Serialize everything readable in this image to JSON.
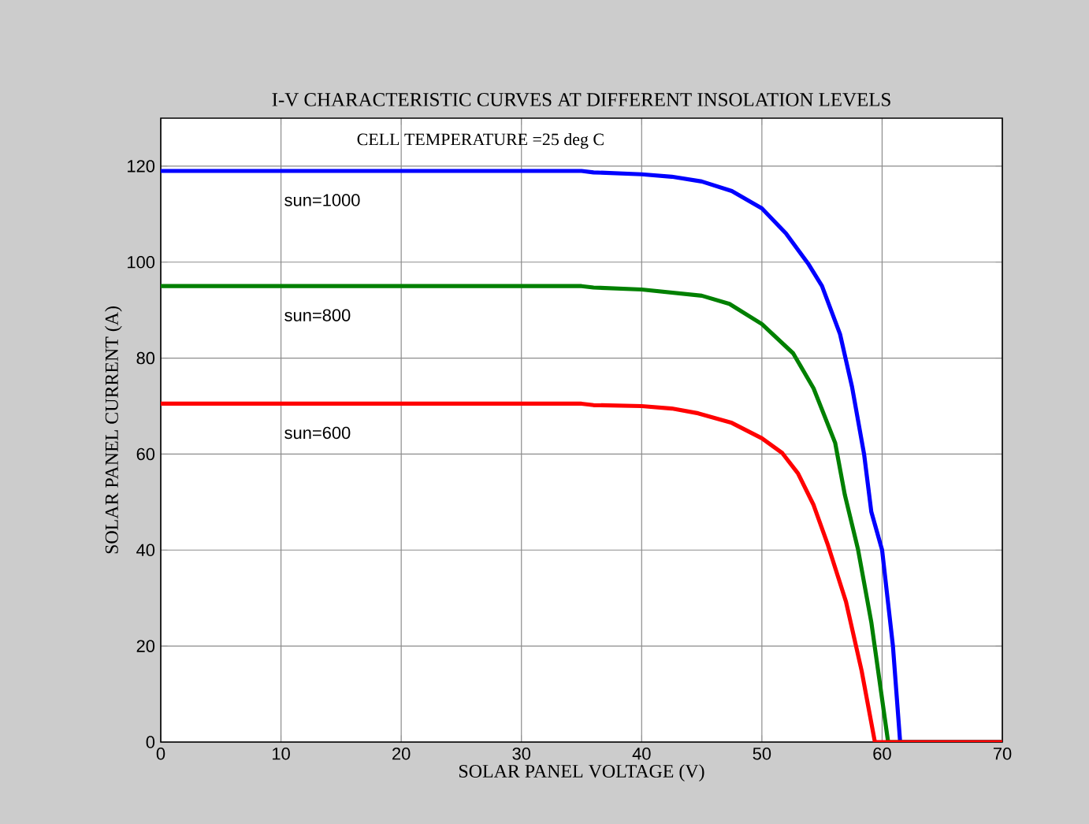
{
  "chart_data": {
    "type": "line",
    "title": "I-V CHARACTERISTIC CURVES AT DIFFERENT INSOLATION LEVELS",
    "xlabel": "SOLAR PANEL VOLTAGE (V)",
    "ylabel": "SOLAR PANEL CURRENT (A)",
    "annotations": [
      "CELL TEMPERATURE =25 deg C"
    ],
    "xlim": [
      0,
      70
    ],
    "ylim": [
      0,
      130
    ],
    "xticks": [
      0,
      10,
      20,
      30,
      40,
      50,
      60,
      70
    ],
    "yticks": [
      0,
      20,
      40,
      60,
      80,
      100,
      120
    ],
    "grid": true,
    "line_style": "solid",
    "marker": "none",
    "series": [
      {
        "name": "sun=1000",
        "color": "#0000ff",
        "x": [
          0,
          35,
          36,
          40,
          42.5,
          45,
          47.5,
          50,
          52,
          53.9,
          55,
          56.5,
          57.5,
          58.5,
          59.1,
          60,
          60.9,
          61.5,
          70
        ],
        "values": [
          119,
          119,
          118.7,
          118.3,
          117.8,
          116.8,
          114.8,
          111.2,
          106,
          99.5,
          95,
          85,
          74,
          60,
          48,
          40,
          20,
          0,
          0
        ]
      },
      {
        "name": "sun=800",
        "color": "#008000",
        "x": [
          0,
          35,
          36,
          40,
          45,
          47.3,
          50,
          52.6,
          54.3,
          56.1,
          56.9,
          58,
          59.1,
          60.5,
          70
        ],
        "values": [
          95,
          95,
          94.7,
          94.3,
          93,
          91.3,
          87.1,
          81,
          73.7,
          62.3,
          51.5,
          40.1,
          25,
          0,
          0
        ]
      },
      {
        "name": "sun=600",
        "color": "#ff0000",
        "x": [
          0,
          35,
          36,
          40,
          42.5,
          44.7,
          47.5,
          50,
          51.7,
          53,
          54.3,
          55.5,
          57,
          58.3,
          59.4,
          70
        ],
        "values": [
          70.5,
          70.5,
          70.2,
          70,
          69.5,
          68.5,
          66.5,
          63.3,
          60.2,
          56,
          49.4,
          41,
          29.2,
          14.8,
          0,
          0
        ]
      }
    ]
  }
}
